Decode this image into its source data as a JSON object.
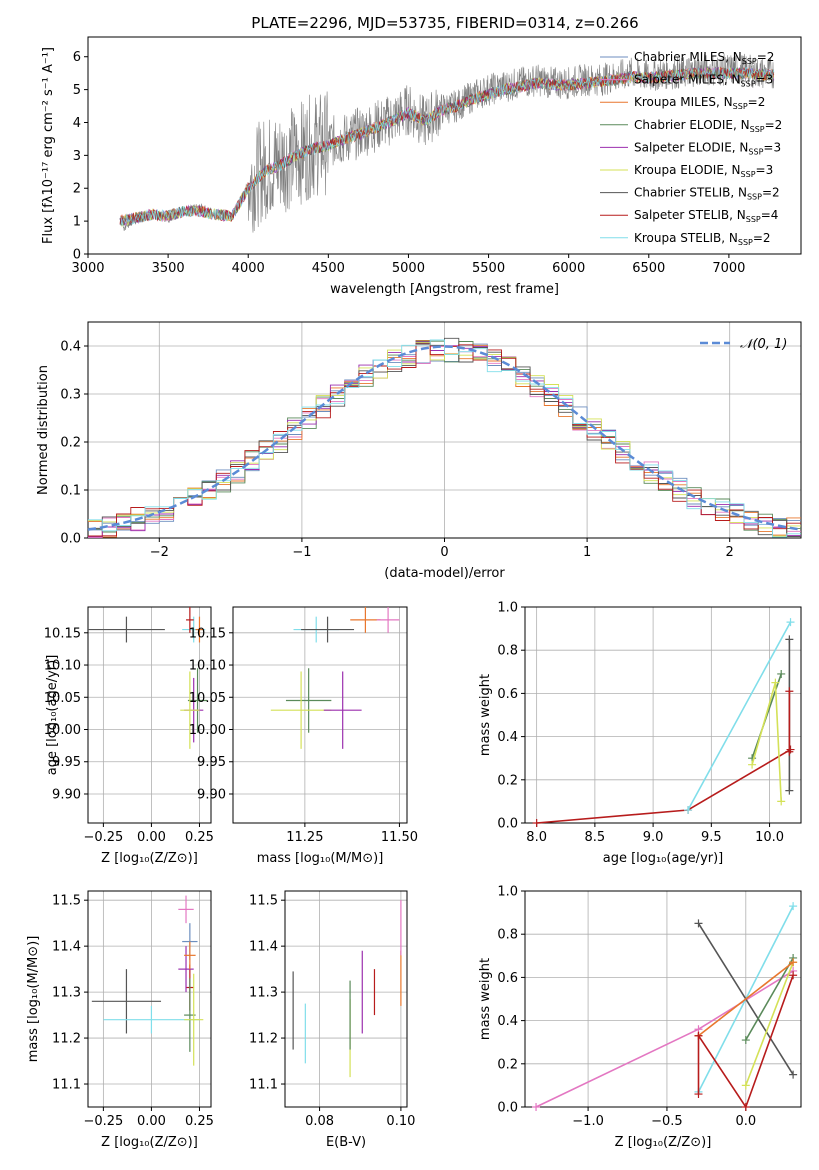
{
  "figure": {
    "title": "PLATE=2296, MJD=53735, FIBERID=0314, z=0.266"
  },
  "legend_entries": [
    {
      "label": "Chabrier MILES, N",
      "sub": "SSP",
      "tail": "=2",
      "color": "#6c8ebf"
    },
    {
      "label": "Salpeter MILES, N",
      "sub": "SSP",
      "tail": "=3",
      "color": "#e377c2"
    },
    {
      "label": "Kroupa MILES, N",
      "sub": "SSP",
      "tail": "=2",
      "color": "#e8772e"
    },
    {
      "label": "Chabrier ELODIE, N",
      "sub": "SSP",
      "tail": "=2",
      "color": "#5a8a5a"
    },
    {
      "label": "Salpeter ELODIE, N",
      "sub": "SSP",
      "tail": "=3",
      "color": "#9b2fae"
    },
    {
      "label": "Kroupa ELODIE, N",
      "sub": "SSP",
      "tail": "=3",
      "color": "#d4e157"
    },
    {
      "label": "Chabrier STELIB, N",
      "sub": "SSP",
      "tail": "=2",
      "color": "#555555"
    },
    {
      "label": "Salpeter STELIB, N",
      "sub": "SSP",
      "tail": "=4",
      "color": "#b71c1c"
    },
    {
      "label": "Kroupa STELIB, N",
      "sub": "SSP",
      "tail": "=2",
      "color": "#80deea"
    }
  ],
  "chart_data": [
    {
      "id": "spectrum",
      "type": "line",
      "xlabel": "wavelength [Angstrom, rest frame]",
      "ylabel": "Flux [fλ10⁻¹⁷ erg cm⁻² s⁻¹ A⁻¹]",
      "xlim": [
        3000,
        7450
      ],
      "ylim": [
        0,
        6.6
      ],
      "xticks": [
        "3000",
        "3500",
        "4000",
        "4500",
        "5000",
        "5500",
        "6000",
        "6500",
        "7000"
      ],
      "yticks": [
        "0",
        "1",
        "2",
        "3",
        "4",
        "5",
        "6"
      ],
      "series": [
        {
          "name": "observed",
          "color": "#808080",
          "x": [
            3220,
            3300,
            3400,
            3500,
            3600,
            3700,
            3800,
            3900,
            4000,
            4100,
            4200,
            4300,
            4400,
            4500,
            4600,
            4700,
            4800,
            4900,
            5000,
            5100,
            5200,
            5300,
            5400,
            5500,
            5600,
            5700,
            5800,
            5900,
            6000,
            6100,
            6200,
            6300,
            6400,
            6500,
            6600,
            6700,
            6800,
            6900,
            7000,
            7100,
            7200,
            7280
          ],
          "y": [
            0.8,
            1.1,
            1.2,
            1.1,
            1.3,
            1.4,
            1.2,
            1.1,
            2.1,
            2.6,
            2.8,
            3.0,
            3.3,
            3.4,
            3.5,
            3.7,
            3.9,
            4.1,
            4.4,
            4.0,
            4.4,
            4.5,
            4.8,
            5.0,
            5.1,
            5.2,
            5.3,
            5.2,
            5.2,
            5.3,
            5.3,
            5.4,
            5.5,
            5.4,
            5.5,
            5.5,
            5.6,
            5.6,
            5.6,
            5.6,
            5.5,
            5.5
          ]
        }
      ],
      "model": {
        "x": [
          3200,
          3300,
          3400,
          3500,
          3600,
          3700,
          3800,
          3900,
          4000,
          4100,
          4200,
          4300,
          4400,
          4500,
          4600,
          4700,
          4800,
          4900,
          5000,
          5100,
          5200,
          5300,
          5400,
          5500,
          5600,
          5700,
          5800,
          5900,
          6000,
          6100,
          6200,
          6300,
          6400,
          6500,
          6600,
          6700,
          6800,
          6900,
          7000,
          7100,
          7200,
          7280
        ],
        "y": [
          1.0,
          1.1,
          1.2,
          1.15,
          1.3,
          1.3,
          1.2,
          1.15,
          2.0,
          2.5,
          2.7,
          3.0,
          3.2,
          3.3,
          3.5,
          3.65,
          3.85,
          4.05,
          4.3,
          4.05,
          4.35,
          4.5,
          4.7,
          4.85,
          5.0,
          5.1,
          5.2,
          5.15,
          5.15,
          5.2,
          5.25,
          5.3,
          5.4,
          5.35,
          5.4,
          5.45,
          5.5,
          5.5,
          5.5,
          5.5,
          5.45,
          5.45
        ]
      }
    },
    {
      "id": "residuals",
      "type": "line",
      "xlabel": "(data-model)/error",
      "ylabel": "Normed distribution",
      "xlim": [
        -2.5,
        2.5
      ],
      "ylim": [
        0,
        0.45
      ],
      "xticks": [
        "−2",
        "−1",
        "0",
        "1",
        "2"
      ],
      "yticks": [
        "0.0",
        "0.1",
        "0.2",
        "0.3",
        "0.4"
      ],
      "legend": "𝒩(0, 1)",
      "gaussian": {
        "mu": 0,
        "sigma": 1,
        "color": "#5b8bd6"
      }
    },
    {
      "id": "age_vs_z",
      "type": "scatter",
      "xlabel": "Z [log₁₀(Z/Z⊙)]",
      "ylabel": "age  [log₁₀(age/yr)]",
      "xlim": [
        -0.33,
        0.31
      ],
      "ylim": [
        9.855,
        10.19
      ],
      "xticks": [
        "−0.25",
        "0.00",
        "0.25"
      ],
      "xtick_values": [
        -0.25,
        0,
        0.25
      ],
      "yticks": [
        "9.90",
        "9.95",
        "10.00",
        "10.05",
        "10.10",
        "10.15"
      ],
      "ytick_values": [
        9.9,
        9.95,
        10.0,
        10.05,
        10.1,
        10.15
      ],
      "points": [
        {
          "x": -0.13,
          "y": 10.155,
          "dx": 0.2,
          "dy": 0.02,
          "color": "#555555"
        },
        {
          "x": 0.22,
          "y": 10.155,
          "dx": 0.06,
          "dy": 0.02,
          "color": "#80deea"
        },
        {
          "x": 0.2,
          "y": 10.17,
          "dx": 0.02,
          "dy": 0.02,
          "color": "#b71c1c"
        },
        {
          "x": 0.24,
          "y": 10.045,
          "dx": 0.05,
          "dy": 0.05,
          "color": "#5a8a5a"
        },
        {
          "x": 0.22,
          "y": 10.03,
          "dx": 0.05,
          "dy": 0.05,
          "color": "#9b2fae"
        },
        {
          "x": 0.2,
          "y": 10.03,
          "dx": 0.05,
          "dy": 0.06,
          "color": "#d4e157"
        },
        {
          "x": 0.25,
          "y": 10.155,
          "dx": 0.02,
          "dy": 0.02,
          "color": "#e8772e"
        }
      ]
    },
    {
      "id": "age_vs_mass",
      "type": "scatter",
      "xlabel": "mass [log₁₀(M/M⊙)]",
      "ylabel": "",
      "xlim": [
        11.06,
        11.52
      ],
      "ylim": [
        9.855,
        10.19
      ],
      "xticks": [
        "11.25",
        "11.50"
      ],
      "xtick_values": [
        11.25,
        11.5
      ],
      "yticks": [
        "9.90",
        "9.95",
        "10.00",
        "10.05",
        "10.10",
        "10.15"
      ],
      "ytick_values": [
        9.9,
        9.95,
        10.0,
        10.05,
        10.1,
        10.15
      ],
      "points": [
        {
          "x": 11.28,
          "y": 10.155,
          "dx": 0.06,
          "dy": 0.02,
          "color": "#80deea"
        },
        {
          "x": 11.31,
          "y": 10.155,
          "dx": 0.07,
          "dy": 0.02,
          "color": "#555555"
        },
        {
          "x": 11.26,
          "y": 10.045,
          "dx": 0.06,
          "dy": 0.05,
          "color": "#5a8a5a"
        },
        {
          "x": 11.24,
          "y": 10.03,
          "dx": 0.08,
          "dy": 0.06,
          "color": "#d4e157"
        },
        {
          "x": 11.35,
          "y": 10.03,
          "dx": 0.05,
          "dy": 0.06,
          "color": "#9b2fae"
        },
        {
          "x": 11.41,
          "y": 10.17,
          "dx": 0.04,
          "dy": 0.02,
          "color": "#e8772e"
        },
        {
          "x": 11.47,
          "y": 10.17,
          "dx": 0.03,
          "dy": 0.02,
          "color": "#e377c2"
        }
      ]
    },
    {
      "id": "mass_weight_vs_age",
      "type": "line",
      "xlabel": "age  [log₁₀(age/yr)]",
      "ylabel": "mass weight",
      "xlim": [
        7.9,
        10.27
      ],
      "ylim": [
        0,
        1.0
      ],
      "xticks": [
        "8.0",
        "8.5",
        "9.0",
        "9.5",
        "10.0"
      ],
      "xtick_values": [
        8.0,
        8.5,
        9.0,
        9.5,
        10.0
      ],
      "yticks": [
        "0.0",
        "0.2",
        "0.4",
        "0.6",
        "0.8",
        "1.0"
      ],
      "ytick_values": [
        0,
        0.2,
        0.4,
        0.6,
        0.8,
        1.0
      ],
      "series": [
        {
          "x": [
            8.0,
            9.3,
            10.18
          ],
          "y": [
            0.0,
            0.06,
            0.34
          ],
          "color": "#b71c1c"
        },
        {
          "x": [
            9.3,
            10.18
          ],
          "y": [
            0.06,
            0.93
          ],
          "color": "#80deea"
        },
        {
          "x": [
            9.85,
            10.1
          ],
          "y": [
            0.3,
            0.69
          ],
          "color": "#5a8a5a"
        },
        {
          "x": [
            10.17,
            10.17
          ],
          "y": [
            0.15,
            0.85
          ],
          "color": "#555555"
        },
        {
          "x": [
            9.85,
            10.05,
            10.1
          ],
          "y": [
            0.27,
            0.65,
            0.1
          ],
          "color": "#d4e157"
        },
        {
          "x": [
            10.17,
            10.17
          ],
          "y": [
            0.33,
            0.61
          ],
          "color": "#b71c1c"
        }
      ]
    },
    {
      "id": "mass_vs_z",
      "type": "scatter",
      "xlabel": "Z [log₁₀(Z/Z⊙)]",
      "ylabel": "mass [log₁₀(M/M⊙)]",
      "xlim": [
        -0.33,
        0.31
      ],
      "ylim": [
        11.05,
        11.52
      ],
      "xticks": [
        "−0.25",
        "0.00",
        "0.25"
      ],
      "xtick_values": [
        -0.25,
        0,
        0.25
      ],
      "yticks": [
        "11.1",
        "11.2",
        "11.3",
        "11.4",
        "11.5"
      ],
      "ytick_values": [
        11.1,
        11.2,
        11.3,
        11.4,
        11.5
      ],
      "points": [
        {
          "x": -0.13,
          "y": 11.28,
          "dx": 0.18,
          "dy": 0.07,
          "color": "#555555"
        },
        {
          "x": 0.0,
          "y": 11.24,
          "dx": 0.25,
          "dy": 0.03,
          "color": "#80deea"
        },
        {
          "x": 0.2,
          "y": 11.31,
          "dx": 0.02,
          "dy": 0.05,
          "color": "#b71c1c"
        },
        {
          "x": 0.2,
          "y": 11.25,
          "dx": 0.03,
          "dy": 0.08,
          "color": "#5a8a5a"
        },
        {
          "x": 0.22,
          "y": 11.24,
          "dx": 0.05,
          "dy": 0.1,
          "color": "#d4e157"
        },
        {
          "x": 0.18,
          "y": 11.35,
          "dx": 0.04,
          "dy": 0.05,
          "color": "#9b2fae"
        },
        {
          "x": 0.2,
          "y": 11.41,
          "dx": 0.04,
          "dy": 0.04,
          "color": "#6c8ebf"
        },
        {
          "x": 0.18,
          "y": 11.48,
          "dx": 0.04,
          "dy": 0.03,
          "color": "#e377c2"
        },
        {
          "x": 0.2,
          "y": 11.38,
          "dx": 0.03,
          "dy": 0.03,
          "color": "#e8772e"
        }
      ]
    },
    {
      "id": "mass_vs_ebv",
      "type": "scatter",
      "xlabel": "E(B-V)",
      "ylabel": "",
      "xlim": [
        0.0715,
        0.1015
      ],
      "ylim": [
        11.05,
        11.52
      ],
      "xticks": [
        "0.08",
        "0.10"
      ],
      "xtick_values": [
        0.08,
        0.1
      ],
      "yticks": [
        "11.1",
        "11.2",
        "11.3",
        "11.4",
        "11.5"
      ],
      "ytick_values": [
        11.1,
        11.2,
        11.3,
        11.4,
        11.5
      ],
      "points": [
        {
          "x": 0.0735,
          "y": 11.26,
          "dy": 0.085,
          "color": "#555555"
        },
        {
          "x": 0.0765,
          "y": 11.21,
          "dy": 0.065,
          "color": "#80deea"
        },
        {
          "x": 0.0875,
          "y": 11.2,
          "dy": 0.085,
          "color": "#d4e157"
        },
        {
          "x": 0.0875,
          "y": 11.25,
          "dy": 0.075,
          "color": "#5a8a5a"
        },
        {
          "x": 0.0905,
          "y": 11.3,
          "dy": 0.09,
          "color": "#9b2fae"
        },
        {
          "x": 0.0935,
          "y": 11.3,
          "dy": 0.05,
          "color": "#b71c1c"
        },
        {
          "x": 0.1,
          "y": 11.33,
          "dy": 0.06,
          "color": "#e8772e"
        },
        {
          "x": 0.1,
          "y": 11.44,
          "dy": 0.06,
          "color": "#e377c2"
        }
      ]
    },
    {
      "id": "mass_weight_vs_z",
      "type": "line",
      "xlabel": "Z [log₁₀(Z/Z⊙)]",
      "ylabel": "mass weight",
      "xlim": [
        -1.4,
        0.35
      ],
      "ylim": [
        0,
        1.0
      ],
      "xticks": [
        "−1.0",
        "−0.5",
        "0.0"
      ],
      "xtick_values": [
        -1.0,
        -0.5,
        0.0
      ],
      "yticks": [
        "0.0",
        "0.2",
        "0.4",
        "0.6",
        "0.8",
        "1.0"
      ],
      "ytick_values": [
        0,
        0.2,
        0.4,
        0.6,
        0.8,
        1.0
      ],
      "series": [
        {
          "x": [
            -1.33,
            -0.3,
            0.3
          ],
          "y": [
            0.0,
            0.36,
            0.63
          ],
          "color": "#e377c2"
        },
        {
          "x": [
            -0.3,
            0.3
          ],
          "y": [
            0.07,
            0.93
          ],
          "color": "#80deea"
        },
        {
          "x": [
            -0.3,
            0.3
          ],
          "y": [
            0.85,
            0.15
          ],
          "color": "#555555"
        },
        {
          "x": [
            0.0,
            0.3
          ],
          "y": [
            0.31,
            0.69
          ],
          "color": "#5a8a5a"
        },
        {
          "x": [
            0.0,
            0.3
          ],
          "y": [
            0.1,
            0.67
          ],
          "color": "#d4e157"
        },
        {
          "x": [
            -0.3,
            0.3
          ],
          "y": [
            0.33,
            0.67
          ],
          "color": "#e8772e"
        },
        {
          "x": [
            -0.3,
            -0.3,
            0.0,
            0.3
          ],
          "y": [
            0.06,
            0.33,
            0.0,
            0.61
          ],
          "color": "#b71c1c"
        }
      ]
    }
  ]
}
